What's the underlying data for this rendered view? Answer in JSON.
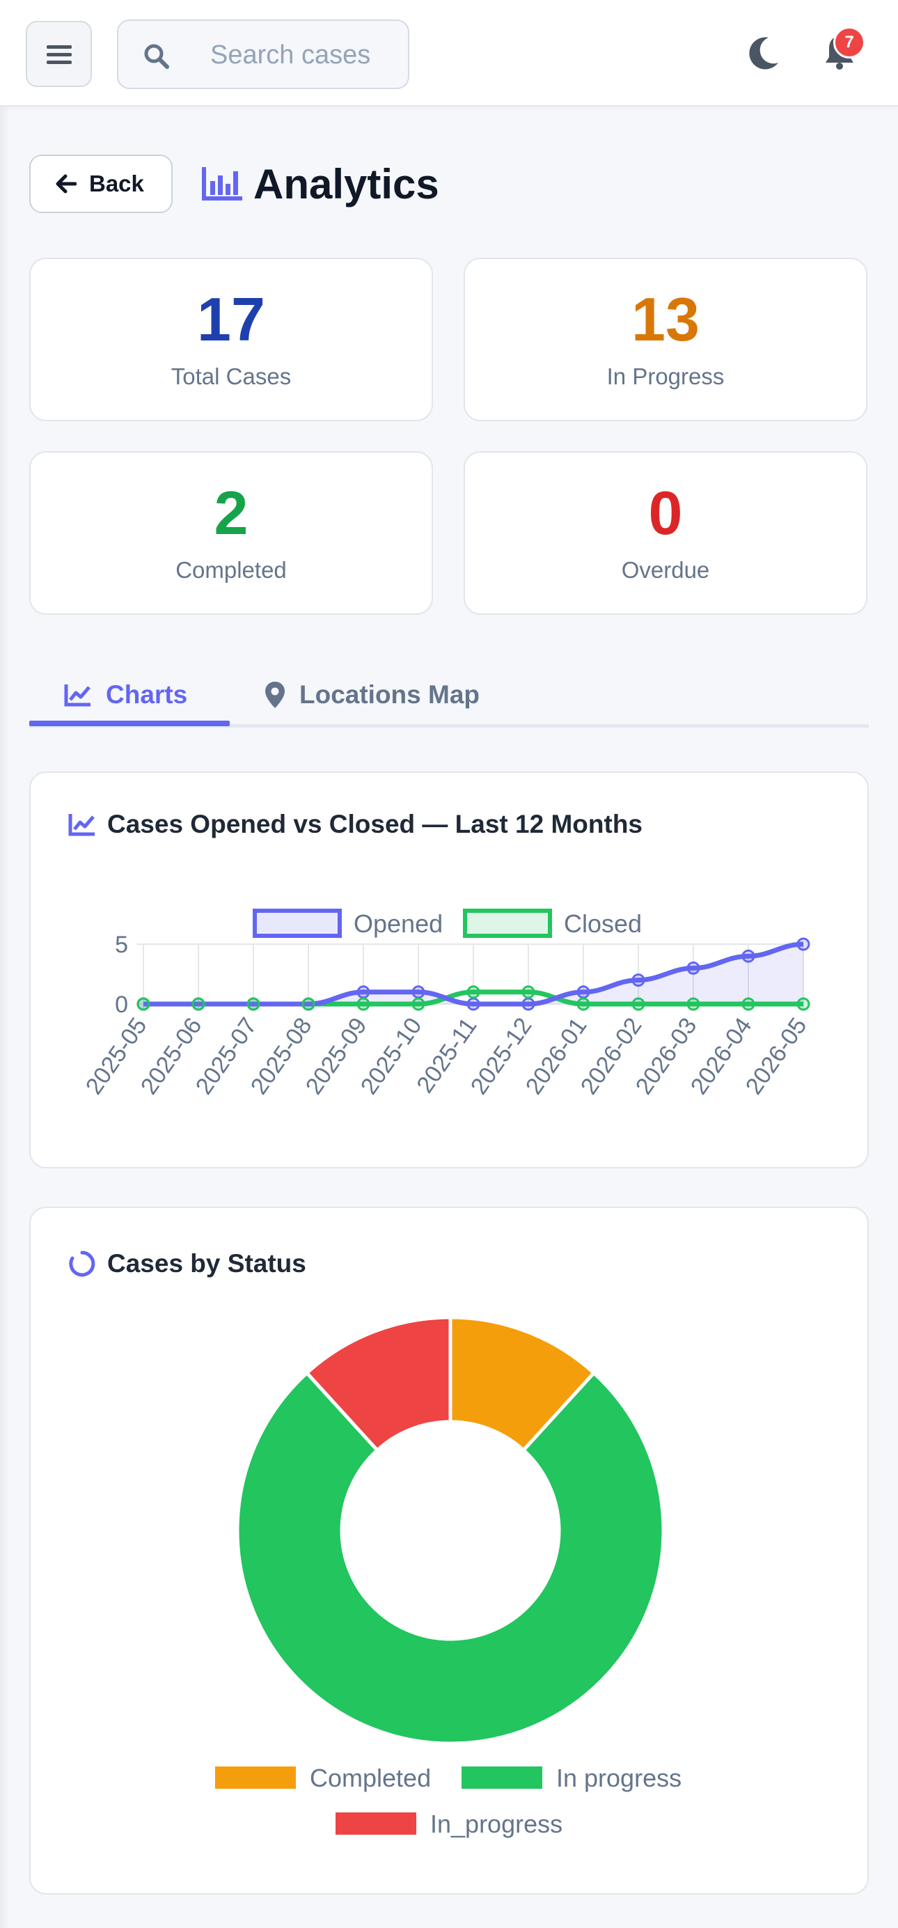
{
  "header": {
    "search_placeholder": "Search cases",
    "notification_count": "7",
    "icons": [
      "hamburger-menu-icon",
      "search-icon",
      "moon-icon",
      "bell-icon"
    ]
  },
  "page": {
    "back_label": "Back",
    "title": "Analytics"
  },
  "stats": [
    {
      "value": "17",
      "label": "Total Cases",
      "color": "#1e40af"
    },
    {
      "value": "13",
      "label": "In Progress",
      "color": "#d97706"
    },
    {
      "value": "2",
      "label": "Completed",
      "color": "#16a34a"
    },
    {
      "value": "0",
      "label": "Overdue",
      "color": "#dc2626"
    }
  ],
  "tabs": [
    {
      "label": "Charts",
      "active": true,
      "icon": "chart-line-icon"
    },
    {
      "label": "Locations Map",
      "active": false,
      "icon": "map-pin-icon"
    }
  ],
  "colors": {
    "accent": "#6366f1",
    "opened": "#6366f1",
    "closed": "#22c55e",
    "completed": "#f59e0b",
    "in_progress": "#22c55e",
    "in_progress_alt": "#ef4444"
  },
  "chart_data": [
    {
      "type": "line",
      "title": "Cases Opened vs Closed — Last 12 Months",
      "x": [
        "2025-05",
        "2025-06",
        "2025-07",
        "2025-08",
        "2025-09",
        "2025-10",
        "2025-11",
        "2025-12",
        "2026-01",
        "2026-02",
        "2026-03",
        "2026-04",
        "2026-05"
      ],
      "series": [
        {
          "name": "Opened",
          "values": [
            0,
            0,
            0,
            0,
            1,
            1,
            0,
            0,
            1,
            2,
            3,
            4,
            5
          ],
          "fill": true
        },
        {
          "name": "Closed",
          "values": [
            0,
            0,
            0,
            0,
            0,
            0,
            1,
            1,
            0,
            0,
            0,
            0,
            0
          ],
          "fill": false
        }
      ],
      "yticks": [
        0,
        5
      ],
      "ylim": [
        0,
        5
      ],
      "legend": "top-center",
      "grid": true
    },
    {
      "type": "pie",
      "title": "Cases by Status",
      "categories": [
        "Completed",
        "In progress",
        "In_progress"
      ],
      "values": [
        2,
        13,
        2
      ],
      "legend": "bottom",
      "donut": true
    }
  ]
}
